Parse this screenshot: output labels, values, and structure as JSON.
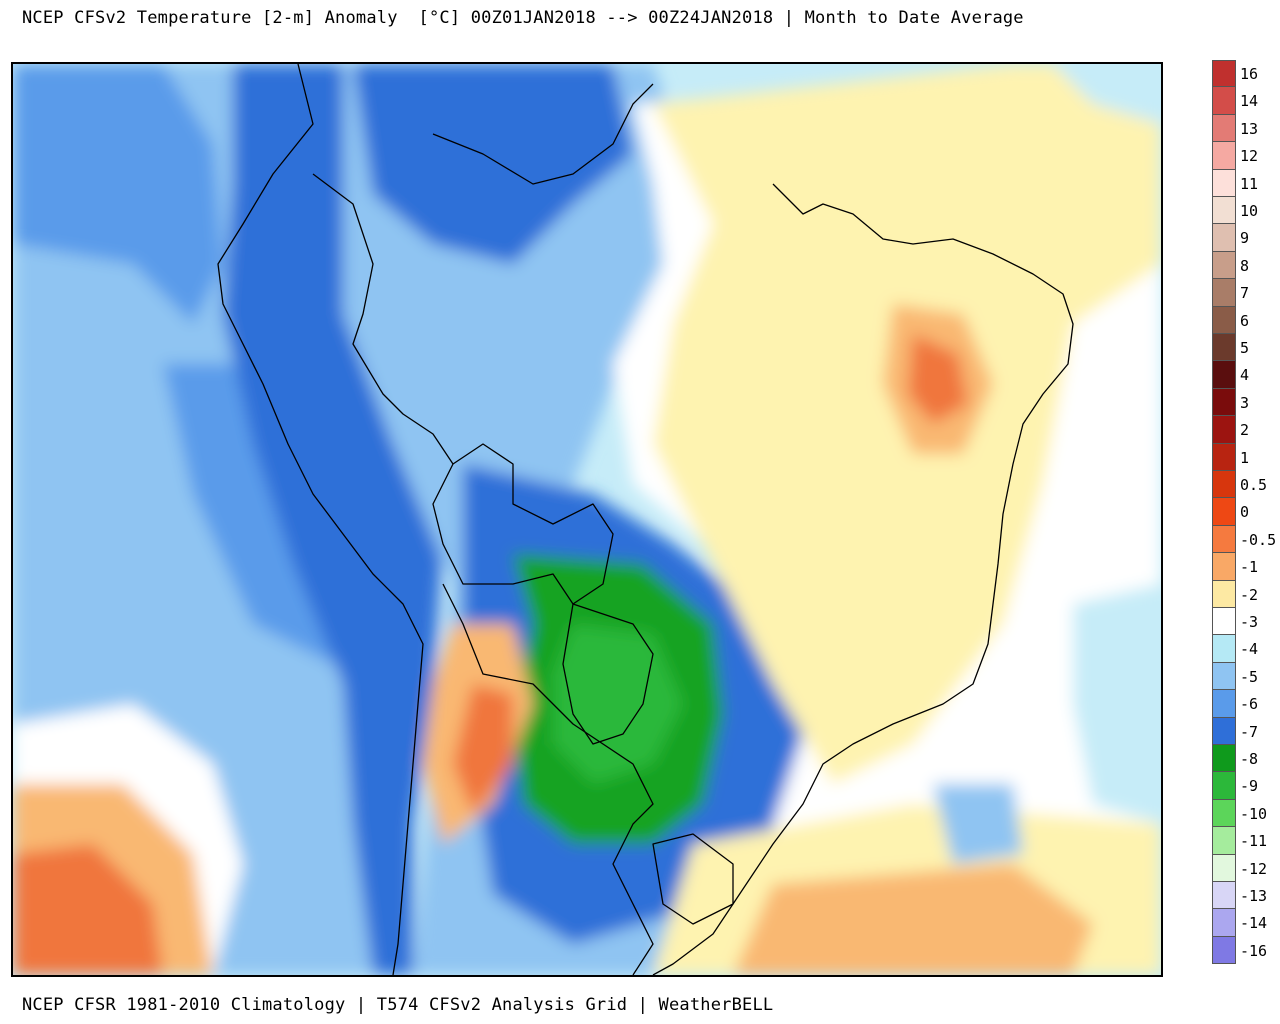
{
  "header": {
    "title": "NCEP CFSv2 Temperature [2-m] Anomaly  [°C] 00Z01JAN2018 --> 00Z24JAN2018 | Month to Date Average"
  },
  "footer": {
    "text": "NCEP CFSR 1981-2010 Climatology | T574 CFSv2 Analysis Grid | WeatherBELL"
  },
  "legend": [
    {
      "label": "16",
      "color": "#c0302e"
    },
    {
      "label": "14",
      "color": "#d34d49"
    },
    {
      "label": "13",
      "color": "#e37b75"
    },
    {
      "label": "12",
      "color": "#f5a9a2"
    },
    {
      "label": "11",
      "color": "#fde0da"
    },
    {
      "label": "10",
      "color": "#f2dfd3"
    },
    {
      "label": "9",
      "color": "#dfbfb0"
    },
    {
      "label": "8",
      "color": "#c89e8a"
    },
    {
      "label": "7",
      "color": "#a97d68"
    },
    {
      "label": "6",
      "color": "#8a5c48"
    },
    {
      "label": "5",
      "color": "#6b3a2c"
    },
    {
      "label": "4",
      "color": "#5a0e0e"
    },
    {
      "label": "3",
      "color": "#7a0c0c"
    },
    {
      "label": "2",
      "color": "#9c1410"
    },
    {
      "label": "1",
      "color": "#b82411"
    },
    {
      "label": "0.5",
      "color": "#d7360d"
    },
    {
      "label": "0",
      "color": "#ee4814"
    },
    {
      "label": "-0.5",
      "color": "#f57a3f"
    },
    {
      "label": "-1",
      "color": "#f9a866"
    },
    {
      "label": "-2",
      "color": "#fde9a3"
    },
    {
      "label": "-3",
      "color": "#ffffff"
    },
    {
      "label": "-4",
      "color": "#b5e9f5"
    },
    {
      "label": "-5",
      "color": "#8fc4f2"
    },
    {
      "label": "-6",
      "color": "#5a9bea"
    },
    {
      "label": "-7",
      "color": "#2f6fd8"
    },
    {
      "label": "-8",
      "color": "#0f9a1c"
    },
    {
      "label": "-9",
      "color": "#2cb83a"
    },
    {
      "label": "-10",
      "color": "#5cd55a"
    },
    {
      "label": "-11",
      "color": "#a5ec9d"
    },
    {
      "label": "-12",
      "color": "#e2f8de"
    },
    {
      "label": "-13",
      "color": "#d8d6f6"
    },
    {
      "label": "-14",
      "color": "#aba7ef"
    },
    {
      "label": "-16",
      "color": "#7f79e4"
    }
  ],
  "colors": {
    "anomaly_cold_strong": "#13a321",
    "anomaly_cold": "#2f6fd8",
    "anomaly_cool": "#8fc4f2",
    "anomaly_slight_cool": "#c6ecf8",
    "anomaly_neutral": "#ffffff",
    "anomaly_slight_warm": "#fef3b0",
    "anomaly_warm": "#f9b872",
    "anomaly_hot": "#f0763c"
  }
}
